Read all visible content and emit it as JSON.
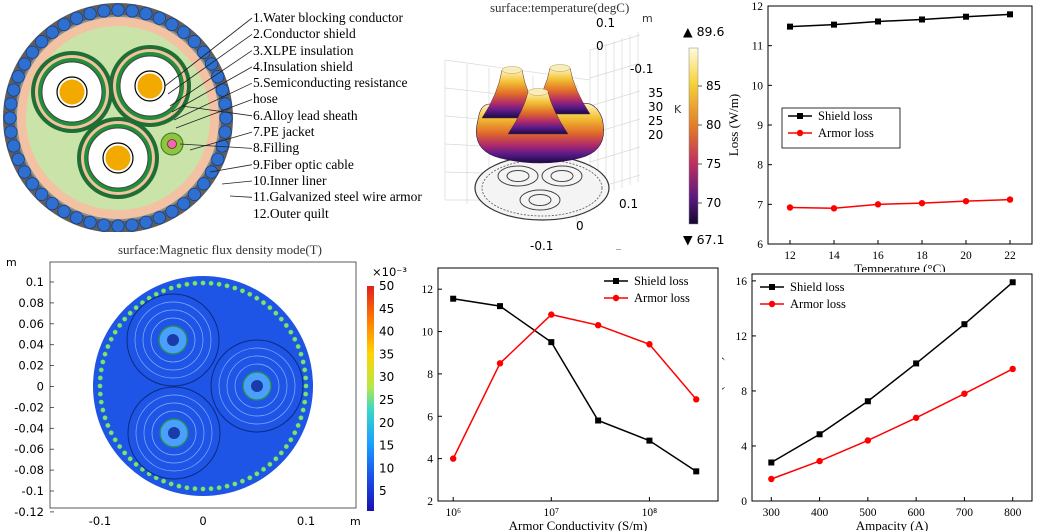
{
  "structure": {
    "labels": [
      "1.Water blocking conductor",
      "2.Conductor shield",
      "3.XLPE insulation",
      "4.Insulation shield",
      "5.Semiconducting resistance hose",
      "6.Alloy lead sheath",
      "7.PE jacket",
      "8.Filling",
      "9.Fiber optic cable",
      "10.Inner liner",
      "11.Galvanized steel wire armor",
      "12.Outer quilt"
    ],
    "colors": {
      "outer_quilt": "#5e5e5e",
      "armor_wire": "#2f6fd0",
      "inner_liner": "#f2c2a3",
      "filling": "#c9e3a9",
      "pe_jacket": "#1f8f3a",
      "lead_sheath": "#c96b4a",
      "insulation": "#ffffff",
      "conductor": "#f2a900",
      "fiber": "#8cc63f"
    }
  },
  "thermal": {
    "title": "surface:temperature(degC)",
    "axis_unit_m": "m",
    "axis_unit_k": "K",
    "y_ticks": [
      "0.1",
      "0",
      "-0.1"
    ],
    "z_ticks": [
      "35",
      "30",
      "25",
      "20"
    ],
    "x_ticks": [
      "0.1",
      "0",
      "-0.1"
    ],
    "colorbar": {
      "max_label": "▲ 89.6",
      "min_label": "▼ 67.1",
      "ticks": [
        "85",
        "80",
        "75",
        "70"
      ]
    }
  },
  "magnetic": {
    "title": "surface:Magnetic flux density mode(T)",
    "axis_unit": "m",
    "y_ticks": [
      "0.1",
      "0.08",
      "0.06",
      "0.04",
      "0.02",
      "0",
      "-0.02",
      "-0.04",
      "-0.06",
      "-0.08",
      "-0.1",
      "-0.12"
    ],
    "x_ticks": [
      "-0.1",
      "0",
      "0.1"
    ],
    "x_unit": "m",
    "colorbar": {
      "exponent": "×10⁻³",
      "ticks": [
        "50",
        "45",
        "40",
        "35",
        "30",
        "25",
        "20",
        "15",
        "10",
        "5"
      ]
    }
  },
  "chart_data": [
    {
      "type": "line",
      "xlabel": "Temperature (°C)",
      "ylabel": "Loss (W/m)",
      "x": [
        12,
        14,
        16,
        18,
        20,
        22
      ],
      "xlim": [
        11,
        23
      ],
      "ylim": [
        6,
        12
      ],
      "x_ticks": [
        "12",
        "14",
        "16",
        "18",
        "20",
        "22"
      ],
      "y_ticks": [
        "6",
        "7",
        "8",
        "9",
        "10",
        "11",
        "12"
      ],
      "legend_position": "center-left",
      "series": [
        {
          "name": "Shield loss",
          "color": "#000000",
          "marker": "square",
          "values": [
            11.48,
            11.53,
            11.61,
            11.66,
            11.73,
            11.79
          ]
        },
        {
          "name": "Armor loss",
          "color": "#ff0000",
          "marker": "circle",
          "values": [
            6.92,
            6.9,
            7.0,
            7.03,
            7.08,
            7.12
          ]
        }
      ]
    },
    {
      "type": "line",
      "xlabel": "Armor Conductivity (S/m)",
      "ylabel": "Loss (W/m)",
      "x": [
        1000000,
        3000000,
        10000000,
        30000000,
        100000000,
        300000000
      ],
      "x_scale": "log",
      "xlim": [
        700000,
        500000000
      ],
      "ylim": [
        2,
        13
      ],
      "x_ticks": [
        "10⁶",
        "10⁷",
        "10⁸"
      ],
      "y_ticks": [
        "2",
        "4",
        "6",
        "8",
        "10",
        "12"
      ],
      "legend_position": "top-right",
      "series": [
        {
          "name": "Shield loss",
          "color": "#000000",
          "marker": "square",
          "values": [
            11.55,
            11.2,
            9.5,
            5.8,
            4.85,
            3.4
          ]
        },
        {
          "name": "Armor loss",
          "color": "#ff0000",
          "marker": "circle",
          "values": [
            4.0,
            8.5,
            10.8,
            10.3,
            9.4,
            6.8
          ]
        }
      ]
    },
    {
      "type": "line",
      "xlabel": "Ampacity (A)",
      "ylabel": "Loss (W/m)",
      "x": [
        300,
        400,
        500,
        600,
        700,
        800
      ],
      "xlim": [
        260,
        840
      ],
      "ylim": [
        0,
        16.5
      ],
      "x_ticks": [
        "300",
        "400",
        "500",
        "600",
        "700",
        "800"
      ],
      "y_ticks": [
        "0",
        "4",
        "8",
        "12",
        "16"
      ],
      "legend_position": "top-left",
      "series": [
        {
          "name": "Shield loss",
          "color": "#000000",
          "marker": "square",
          "values": [
            2.8,
            4.85,
            7.25,
            10.0,
            12.85,
            15.9
          ]
        },
        {
          "name": "Armor loss",
          "color": "#ff0000",
          "marker": "circle",
          "values": [
            1.6,
            2.9,
            4.4,
            6.05,
            7.8,
            9.6
          ]
        }
      ]
    }
  ]
}
